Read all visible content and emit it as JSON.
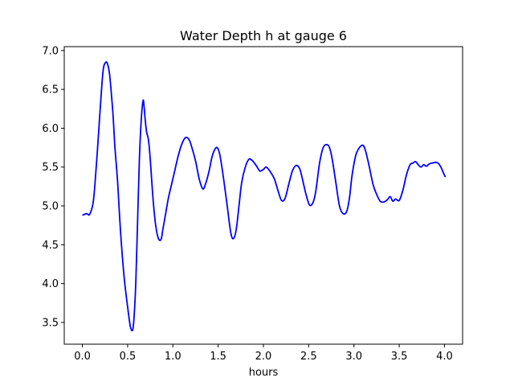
{
  "chart_data": {
    "type": "line",
    "title": "Water Depth h at gauge 6",
    "xlabel": "hours",
    "ylabel": "",
    "xlim": [
      -0.2,
      4.2
    ],
    "ylim": [
      3.22,
      7.05
    ],
    "xticks": [
      0.0,
      0.5,
      1.0,
      1.5,
      2.0,
      2.5,
      3.0,
      3.5,
      4.0
    ],
    "xtick_labels": [
      "0.0",
      "0.5",
      "1.0",
      "1.5",
      "2.0",
      "2.5",
      "3.0",
      "3.5",
      "4.0"
    ],
    "yticks": [
      3.5,
      4.0,
      4.5,
      5.0,
      5.5,
      6.0,
      6.5,
      7.0
    ],
    "ytick_labels": [
      "3.5",
      "4.0",
      "4.5",
      "5.0",
      "5.5",
      "6.0",
      "6.5",
      "7.0"
    ],
    "grid": false,
    "line_color": "#0000ff",
    "series": [
      {
        "x": [
          0.0,
          0.05,
          0.08,
          0.12,
          0.15,
          0.18,
          0.2,
          0.23,
          0.26,
          0.28,
          0.3,
          0.32,
          0.34,
          0.36,
          0.39,
          0.42,
          0.46,
          0.5,
          0.53,
          0.555,
          0.57,
          0.59,
          0.61,
          0.63,
          0.65,
          0.67,
          0.68,
          0.695,
          0.71,
          0.73,
          0.75,
          0.78,
          0.81,
          0.84,
          0.87,
          0.89,
          0.92,
          0.95,
          0.98,
          1.02,
          1.06,
          1.1,
          1.14,
          1.18,
          1.21,
          1.25,
          1.29,
          1.33,
          1.36,
          1.4,
          1.43,
          1.46,
          1.49,
          1.52,
          1.56,
          1.6,
          1.64,
          1.67,
          1.7,
          1.73,
          1.76,
          1.8,
          1.84,
          1.88,
          1.92,
          1.96,
          2.0,
          2.03,
          2.07,
          2.12,
          2.16,
          2.2,
          2.24,
          2.28,
          2.32,
          2.36,
          2.4,
          2.43,
          2.47,
          2.51,
          2.55,
          2.58,
          2.62,
          2.66,
          2.7,
          2.73,
          2.76,
          2.8,
          2.84,
          2.88,
          2.92,
          2.95,
          2.98,
          3.02,
          3.06,
          3.1,
          3.13,
          3.17,
          3.21,
          3.25,
          3.29,
          3.33,
          3.37,
          3.4,
          3.43,
          3.46,
          3.5,
          3.54,
          3.58,
          3.62,
          3.65,
          3.68,
          3.71,
          3.74,
          3.77,
          3.8,
          3.83,
          3.86,
          3.9,
          3.93,
          3.96,
          3.99,
          4.01
        ],
        "y": [
          4.88,
          4.9,
          4.89,
          5.05,
          5.45,
          5.95,
          6.3,
          6.75,
          6.85,
          6.82,
          6.7,
          6.45,
          6.15,
          5.75,
          5.3,
          4.7,
          4.1,
          3.7,
          3.45,
          3.4,
          3.55,
          4.0,
          4.8,
          5.6,
          6.1,
          6.35,
          6.3,
          6.1,
          5.95,
          5.85,
          5.6,
          5.1,
          4.75,
          4.58,
          4.57,
          4.7,
          4.9,
          5.1,
          5.25,
          5.45,
          5.65,
          5.8,
          5.88,
          5.85,
          5.75,
          5.58,
          5.35,
          5.22,
          5.28,
          5.45,
          5.62,
          5.72,
          5.75,
          5.65,
          5.35,
          5.0,
          4.65,
          4.58,
          4.7,
          5.0,
          5.3,
          5.5,
          5.6,
          5.58,
          5.52,
          5.45,
          5.47,
          5.5,
          5.45,
          5.35,
          5.2,
          5.07,
          5.1,
          5.28,
          5.45,
          5.52,
          5.48,
          5.35,
          5.15,
          5.01,
          5.05,
          5.2,
          5.55,
          5.75,
          5.79,
          5.75,
          5.6,
          5.3,
          5.0,
          4.9,
          4.93,
          5.1,
          5.4,
          5.65,
          5.75,
          5.78,
          5.7,
          5.5,
          5.28,
          5.15,
          5.06,
          5.05,
          5.08,
          5.12,
          5.06,
          5.09,
          5.07,
          5.2,
          5.4,
          5.53,
          5.55,
          5.57,
          5.53,
          5.5,
          5.53,
          5.51,
          5.54,
          5.55,
          5.56,
          5.55,
          5.5,
          5.42,
          5.37
        ]
      }
    ]
  }
}
